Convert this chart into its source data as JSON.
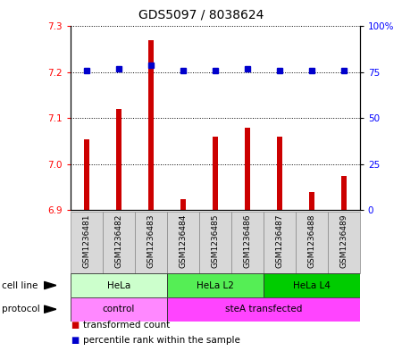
{
  "title": "GDS5097 / 8038624",
  "samples": [
    "GSM1236481",
    "GSM1236482",
    "GSM1236483",
    "GSM1236484",
    "GSM1236485",
    "GSM1236486",
    "GSM1236487",
    "GSM1236488",
    "GSM1236489"
  ],
  "bar_values": [
    7.055,
    7.12,
    7.27,
    6.925,
    7.06,
    7.08,
    7.06,
    6.94,
    6.975
  ],
  "dot_values": [
    76,
    77,
    79,
    76,
    76,
    77,
    76,
    76,
    76
  ],
  "bar_base": 6.9,
  "ylim_left": [
    6.9,
    7.3
  ],
  "ylim_right": [
    0,
    100
  ],
  "yticks_left": [
    6.9,
    7.0,
    7.1,
    7.2,
    7.3
  ],
  "yticks_right": [
    0,
    25,
    50,
    75,
    100
  ],
  "ytick_labels_right": [
    "0",
    "25",
    "50",
    "75",
    "100%"
  ],
  "bar_color": "#cc0000",
  "dot_color": "#0000cc",
  "cell_line_groups": [
    {
      "label": "HeLa",
      "start": 0,
      "end": 3,
      "color": "#ccffcc"
    },
    {
      "label": "HeLa L2",
      "start": 3,
      "end": 6,
      "color": "#55ee55"
    },
    {
      "label": "HeLa L4",
      "start": 6,
      "end": 9,
      "color": "#00cc00"
    }
  ],
  "protocol_groups": [
    {
      "label": "control",
      "start": 0,
      "end": 3,
      "color": "#ff88ff"
    },
    {
      "label": "steA transfected",
      "start": 3,
      "end": 9,
      "color": "#ff44ff"
    }
  ],
  "legend_bar_label": "transformed count",
  "legend_dot_label": "percentile rank within the sample",
  "cell_line_row_label": "cell line",
  "protocol_row_label": "protocol",
  "title_fontsize": 10,
  "tick_fontsize": 7.5,
  "sample_fontsize": 6.5,
  "row_label_fontsize": 7.5,
  "legend_fontsize": 7.5
}
